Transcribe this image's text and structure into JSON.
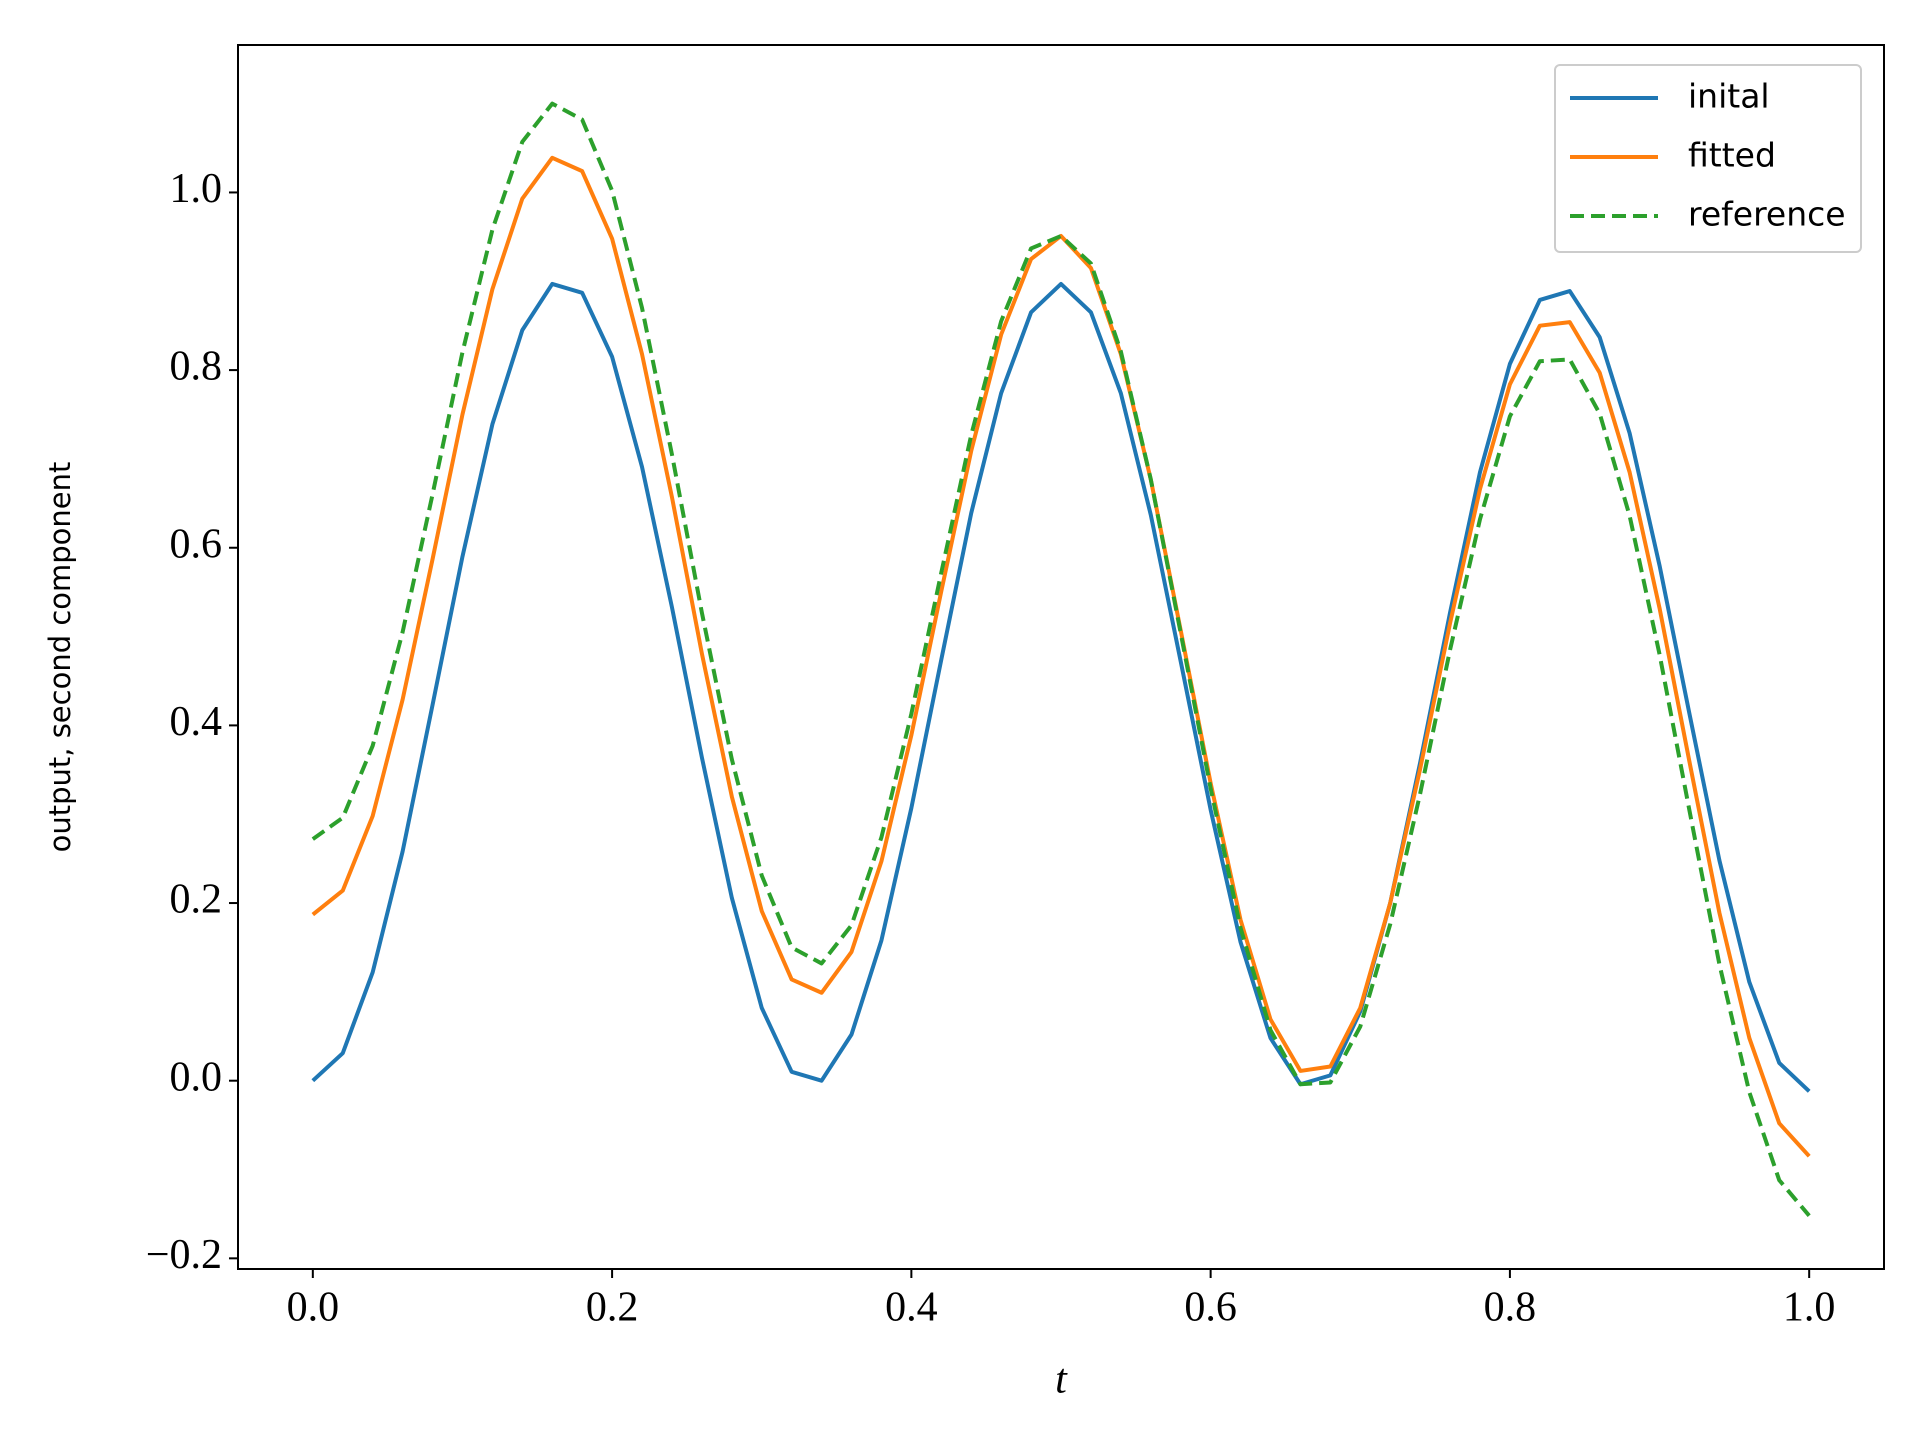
{
  "chart_data": {
    "type": "line",
    "x": [
      0,
      0.02,
      0.04,
      0.06,
      0.08,
      0.1,
      0.12,
      0.14,
      0.16,
      0.18,
      0.2,
      0.22,
      0.24,
      0.26,
      0.28,
      0.3,
      0.32,
      0.34,
      0.36,
      0.38,
      0.4,
      0.42,
      0.44,
      0.46,
      0.48,
      0.5,
      0.52,
      0.54,
      0.56,
      0.58,
      0.6,
      0.62,
      0.64,
      0.66,
      0.68,
      0.7,
      0.72,
      0.74,
      0.76,
      0.78,
      0.8,
      0.82,
      0.84,
      0.86,
      0.88,
      0.9,
      0.92,
      0.94,
      0.96,
      0.98,
      1.0
    ],
    "series": [
      {
        "name": "inital",
        "color": "#1f77b4",
        "dash": false,
        "values": [
          0,
          0.031,
          0.122,
          0.258,
          0.423,
          0.59,
          0.739,
          0.845,
          0.897,
          0.887,
          0.815,
          0.691,
          0.533,
          0.364,
          0.206,
          0.082,
          0.01,
          0.0,
          0.052,
          0.158,
          0.307,
          0.474,
          0.639,
          0.774,
          0.865,
          0.897,
          0.865,
          0.774,
          0.637,
          0.472,
          0.305,
          0.156,
          0.048,
          -0.004,
          0.006,
          0.078,
          0.2,
          0.358,
          0.527,
          0.685,
          0.807,
          0.879,
          0.889,
          0.837,
          0.729,
          0.58,
          0.413,
          0.248,
          0.111,
          0.02,
          -0.012
        ]
      },
      {
        "name": "fitted",
        "color": "#ff7f0e",
        "dash": false,
        "values": [
          0.187,
          0.214,
          0.298,
          0.429,
          0.587,
          0.75,
          0.891,
          0.993,
          1.039,
          1.024,
          0.948,
          0.818,
          0.657,
          0.481,
          0.32,
          0.191,
          0.114,
          0.099,
          0.145,
          0.247,
          0.389,
          0.551,
          0.709,
          0.84,
          0.925,
          0.951,
          0.915,
          0.818,
          0.677,
          0.507,
          0.335,
          0.181,
          0.069,
          0.011,
          0.016,
          0.082,
          0.2,
          0.351,
          0.515,
          0.666,
          0.784,
          0.85,
          0.854,
          0.797,
          0.685,
          0.532,
          0.359,
          0.189,
          0.048,
          -0.048,
          -0.085
        ]
      },
      {
        "name": "reference",
        "color": "#2ca02c",
        "dash": true,
        "values": [
          0.272,
          0.296,
          0.377,
          0.505,
          0.66,
          0.82,
          0.958,
          1.057,
          1.1,
          1.082,
          1.002,
          0.87,
          0.705,
          0.527,
          0.362,
          0.231,
          0.15,
          0.132,
          0.175,
          0.274,
          0.413,
          0.572,
          0.727,
          0.855,
          0.937,
          0.951,
          0.92,
          0.821,
          0.677,
          0.504,
          0.329,
          0.172,
          0.057,
          -0.004,
          -0.002,
          0.061,
          0.176,
          0.323,
          0.485,
          0.632,
          0.748,
          0.81,
          0.812,
          0.751,
          0.636,
          0.48,
          0.304,
          0.131,
          -0.013,
          -0.112,
          -0.152
        ]
      }
    ],
    "x_label": "t",
    "y_label": "output, second component",
    "xlim": [
      -0.05,
      1.05
    ],
    "ylim": [
      -0.212,
      1.166
    ],
    "xticks": [
      {
        "value": 0,
        "label": "0.0"
      },
      {
        "value": 0.2,
        "label": "0.2"
      },
      {
        "value": 0.4,
        "label": "0.4"
      },
      {
        "value": 0.6,
        "label": "0.6"
      },
      {
        "value": 0.8,
        "label": "0.8"
      },
      {
        "value": 1,
        "label": "1.0"
      }
    ],
    "yticks": [
      {
        "value": -0.2,
        "label": "−0.2"
      },
      {
        "value": 0,
        "label": "0.0"
      },
      {
        "value": 0.2,
        "label": "0.2"
      },
      {
        "value": 0.4,
        "label": "0.4"
      },
      {
        "value": 0.6,
        "label": "0.6"
      },
      {
        "value": 0.8,
        "label": "0.8"
      },
      {
        "value": 1,
        "label": "1.0"
      }
    ],
    "legend": "upper right"
  }
}
